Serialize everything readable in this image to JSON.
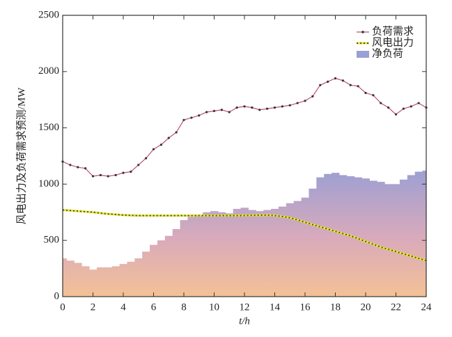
{
  "chart_data": {
    "type": "line",
    "xlabel": "t/h",
    "ylabel": "风电出力及负荷需求预测/MW",
    "x": [
      0,
      0.5,
      1,
      1.5,
      2,
      2.5,
      3,
      3.5,
      4,
      4.5,
      5,
      5.5,
      6,
      6.5,
      7,
      7.5,
      8,
      8.5,
      9,
      9.5,
      10,
      10.5,
      11,
      11.5,
      12,
      12.5,
      13,
      13.5,
      14,
      14.5,
      15,
      15.5,
      16,
      16.5,
      17,
      17.5,
      18,
      18.5,
      19,
      19.5,
      20,
      20.5,
      21,
      21.5,
      22,
      22.5,
      23,
      23.5,
      24
    ],
    "xlim": [
      0,
      24
    ],
    "xticks": [
      0,
      2,
      4,
      6,
      8,
      10,
      12,
      14,
      16,
      18,
      20,
      22,
      24
    ],
    "ylim": [
      0,
      2500
    ],
    "yticks": [
      0,
      500,
      1000,
      1500,
      2000,
      2500
    ],
    "legend": "upper right",
    "series": [
      {
        "name": "负荷需求",
        "kind": "line",
        "color": "#c0506e",
        "values": [
          1200,
          1170,
          1150,
          1140,
          1070,
          1080,
          1070,
          1080,
          1100,
          1110,
          1170,
          1230,
          1310,
          1350,
          1410,
          1460,
          1570,
          1590,
          1610,
          1640,
          1650,
          1660,
          1640,
          1680,
          1690,
          1680,
          1660,
          1670,
          1680,
          1690,
          1700,
          1720,
          1740,
          1780,
          1880,
          1910,
          1940,
          1920,
          1880,
          1870,
          1810,
          1790,
          1720,
          1680,
          1620,
          1670,
          1690,
          1720,
          1680
        ]
      },
      {
        "name": "风电出力",
        "kind": "line",
        "color": "#4a5a10",
        "values": [
          770,
          765,
          760,
          755,
          750,
          742,
          735,
          730,
          725,
          722,
          720,
          720,
          720,
          720,
          720,
          720,
          720,
          720,
          720,
          720,
          720,
          720,
          720,
          720,
          720,
          722,
          725,
          723,
          720,
          712,
          700,
          682,
          660,
          640,
          620,
          600,
          580,
          560,
          540,
          515,
          490,
          465,
          440,
          420,
          400,
          380,
          360,
          340,
          320
        ]
      },
      {
        "name": "净负荷",
        "kind": "bar",
        "color": "#9a9fd4",
        "values": [
          340,
          320,
          300,
          270,
          240,
          260,
          260,
          270,
          290,
          310,
          340,
          400,
          460,
          500,
          540,
          600,
          680,
          710,
          730,
          750,
          760,
          750,
          740,
          780,
          790,
          770,
          760,
          770,
          780,
          800,
          830,
          850,
          880,
          960,
          1060,
          1090,
          1100,
          1080,
          1070,
          1060,
          1050,
          1030,
          1020,
          1000,
          1000,
          1040,
          1080,
          1110,
          1120
        ]
      }
    ]
  }
}
